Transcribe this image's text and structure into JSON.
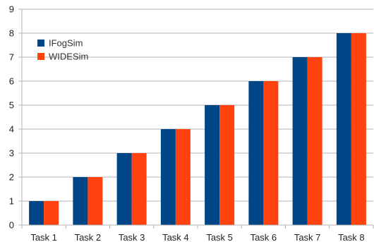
{
  "chart_data": {
    "type": "bar",
    "title": "",
    "xlabel": "",
    "ylabel": "",
    "categories": [
      "Task 1",
      "Task 2",
      "Task 3",
      "Task 4",
      "Task 5",
      "Task 6",
      "Task 7",
      "Task 8"
    ],
    "series": [
      {
        "name": "IFogSim",
        "values": [
          1,
          2,
          3,
          4,
          5,
          6,
          7,
          8
        ],
        "color": "#004586"
      },
      {
        "name": "WIDESim",
        "values": [
          1,
          2,
          3,
          4,
          5,
          6,
          7,
          8
        ],
        "color": "#ff420e"
      }
    ],
    "ylim": [
      0,
      9
    ],
    "yticks": [
      0,
      1,
      2,
      3,
      4,
      5,
      6,
      7,
      8,
      9
    ],
    "grid": true,
    "legend_position": "top-left",
    "gridline_color": "#b3b3b3"
  }
}
